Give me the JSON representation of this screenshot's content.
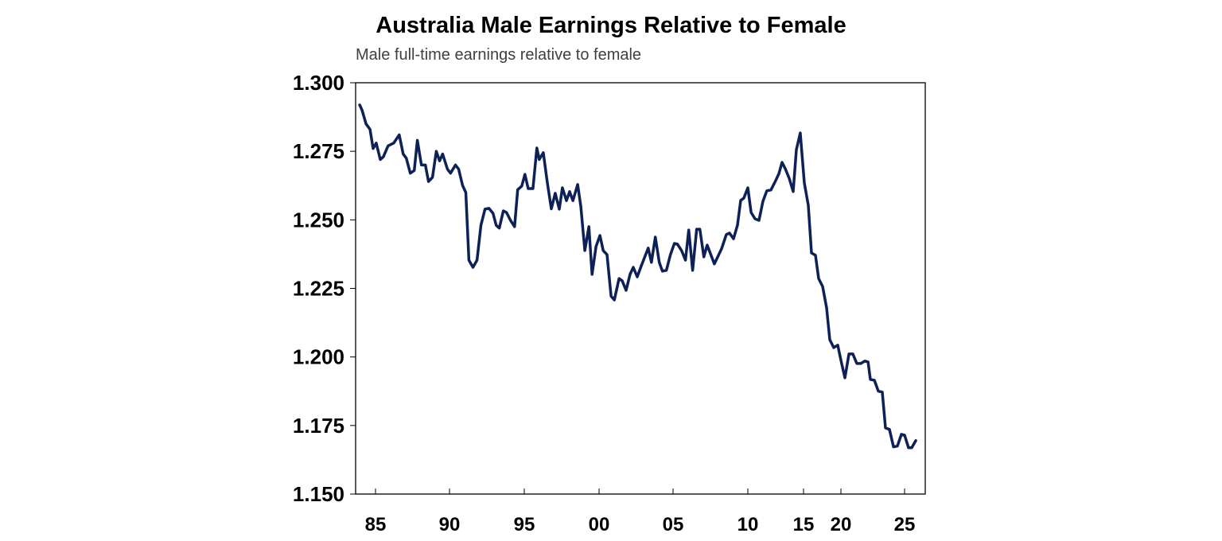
{
  "chart_data": {
    "type": "line",
    "title": "Australia Male Earnings Relative to Female",
    "subtitle": "Male full-time earnings relative to female",
    "xlabel": "",
    "ylabel": "",
    "ylim": [
      1.15,
      1.3
    ],
    "yticks": [
      "1.300",
      "1.275",
      "1.250",
      "1.225",
      "1.200",
      "1.175",
      "1.150"
    ],
    "ytick_values": [
      1.3,
      1.275,
      1.25,
      1.225,
      1.2,
      1.175,
      1.15
    ],
    "xticks": [
      "85",
      "90",
      "95",
      "00",
      "05",
      "10",
      "15",
      "20",
      "25"
    ],
    "xtick_values": [
      1985,
      1990,
      1995,
      2000,
      2005,
      2010,
      2015,
      2020,
      2025
    ],
    "grid": false,
    "legend": "none",
    "line_color": "#0d2157",
    "series": [
      {
        "x": [
          1983.93,
          1984.09,
          1984.36,
          1984.63,
          1984.84,
          1985.05,
          1985.32,
          1985.53,
          1985.85,
          1986.23,
          1986.6,
          1986.87,
          1987.08,
          1987.35,
          1987.62,
          1987.83,
          1988.1,
          1988.37,
          1988.58,
          1988.85,
          1989.11,
          1989.33,
          1989.54,
          1989.86,
          1990.07,
          1990.4,
          1990.61,
          1990.88,
          1991.09,
          1991.3,
          1991.57,
          1991.84,
          1992.1,
          1992.37,
          1992.64,
          1992.91,
          1993.12,
          1993.33,
          1993.6,
          1993.81,
          1994.08,
          1994.35,
          1994.56,
          1994.83,
          1995.04,
          1995.26,
          1995.58,
          1995.84,
          1996.0,
          1996.27,
          1996.54,
          1996.81,
          1997.07,
          1997.34,
          1997.55,
          1997.82,
          1998.03,
          1998.25,
          1998.57,
          1998.78,
          1999.05,
          1999.32,
          1999.53,
          1999.8,
          2000.06,
          2000.28,
          2000.54,
          2000.81,
          2001.03,
          2001.35,
          2001.56,
          2001.83,
          2002.09,
          2002.31,
          2002.58,
          2002.84,
          2003.32,
          2003.54,
          2003.8,
          2004.07,
          2004.28,
          2004.55,
          2004.82,
          2005.09,
          2005.3,
          2005.57,
          2005.83,
          2006.05,
          2006.31,
          2006.58,
          2006.79,
          2007.06,
          2007.28,
          2007.76,
          2008.24,
          2008.56,
          2008.77,
          2009.04,
          2009.31,
          2009.52,
          2009.73,
          2010.0,
          2010.29,
          2010.64,
          2011.0,
          2011.36,
          2011.71,
          2012.07,
          2012.5,
          2012.79,
          2013.07,
          2013.36,
          2013.71,
          2014.07,
          2014.36,
          2014.71,
          2015.11,
          2015.64,
          2016.06,
          2016.6,
          2017.02,
          2017.55,
          2018.09,
          2018.51,
          2019.04,
          2019.57,
          2020.0,
          2020.31,
          2020.63,
          2020.94,
          2021.25,
          2021.56,
          2021.88,
          2022.13,
          2022.31,
          2022.63,
          2022.94,
          2023.25,
          2023.5,
          2023.81,
          2024.13,
          2024.44,
          2024.75,
          2025.0,
          2025.31,
          2025.56,
          2025.88
        ],
        "y": [
          1.2919,
          1.29,
          1.285,
          1.283,
          1.276,
          1.278,
          1.272,
          1.273,
          1.277,
          1.278,
          1.281,
          1.274,
          1.2725,
          1.267,
          1.268,
          1.279,
          1.27,
          1.27,
          1.264,
          1.2655,
          1.275,
          1.2715,
          1.274,
          1.2685,
          1.267,
          1.27,
          1.2685,
          1.2625,
          1.26,
          1.2353,
          1.2327,
          1.2353,
          1.248,
          1.2539,
          1.2542,
          1.2524,
          1.248,
          1.247,
          1.2533,
          1.2527,
          1.2498,
          1.2475,
          1.261,
          1.2623,
          1.2666,
          1.2614,
          1.2614,
          1.2762,
          1.272,
          1.2745,
          1.2635,
          1.254,
          1.2597,
          1.2539,
          1.2617,
          1.257,
          1.2603,
          1.257,
          1.2629,
          1.2548,
          1.2388,
          1.2475,
          1.2301,
          1.2403,
          1.2443,
          1.2388,
          1.2373,
          1.2222,
          1.2208,
          1.2286,
          1.2278,
          1.2243,
          1.2301,
          1.2327,
          1.2292,
          1.233,
          1.2397,
          1.2345,
          1.2437,
          1.2345,
          1.2313,
          1.2316,
          1.2373,
          1.2414,
          1.2411,
          1.2388,
          1.2353,
          1.2463,
          1.2316,
          1.2466,
          1.2466,
          1.2365,
          1.2408,
          1.2339,
          1.2394,
          1.2446,
          1.2452,
          1.2431,
          1.2481,
          1.2571,
          1.2579,
          1.2617,
          1.2527,
          1.2504,
          1.2498,
          1.2568,
          1.2606,
          1.2609,
          1.2643,
          1.2669,
          1.271,
          1.2687,
          1.2652,
          1.2603,
          1.2756,
          1.2817,
          1.2635,
          1.2553,
          1.2379,
          1.2371,
          1.2286,
          1.2257,
          1.2179,
          1.2063,
          1.2034,
          1.2043,
          1.1988,
          1.1924,
          1.2011,
          1.2011,
          1.1976,
          1.1976,
          1.1985,
          1.1982,
          1.1918,
          1.1915,
          1.1875,
          1.1872,
          1.1741,
          1.1736,
          1.1672,
          1.1675,
          1.1718,
          1.1715,
          1.1669,
          1.1669,
          1.1695
        ]
      }
    ]
  }
}
